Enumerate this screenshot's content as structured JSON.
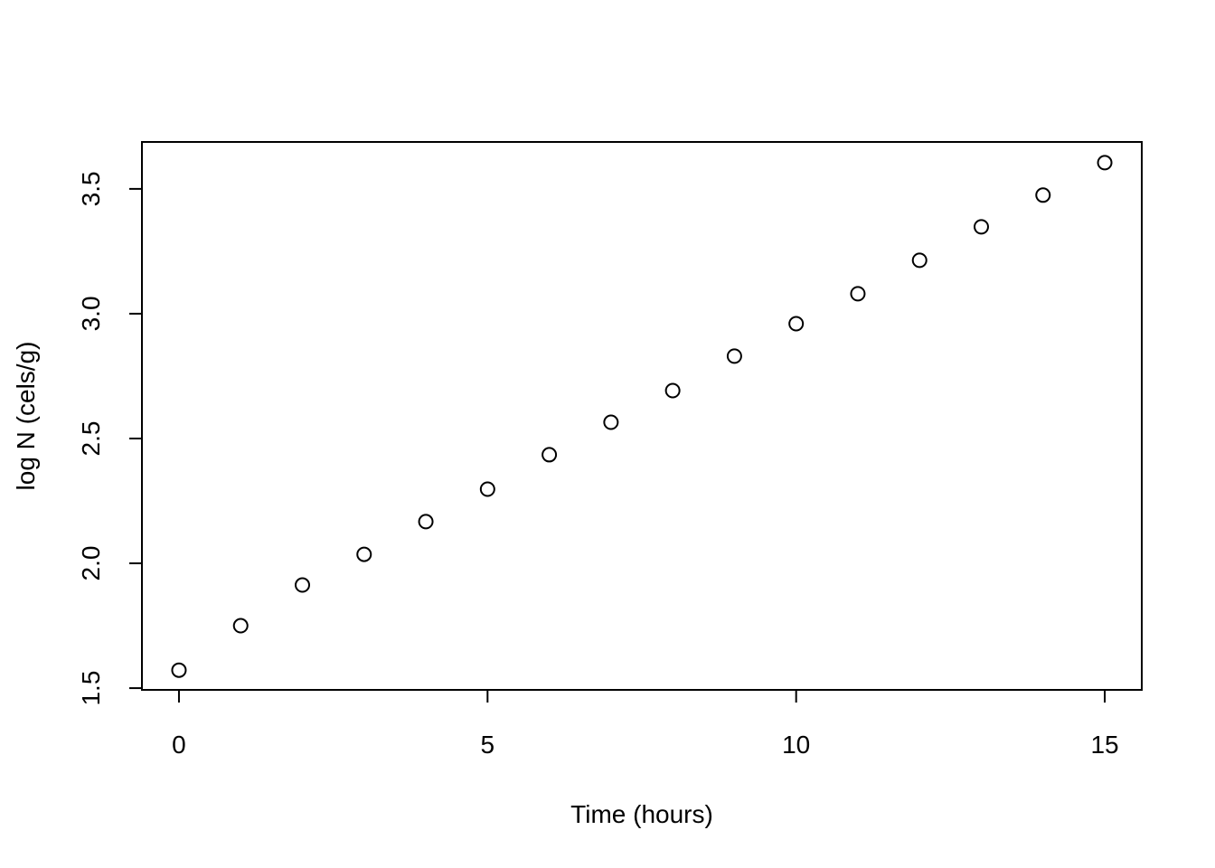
{
  "chart_data": {
    "type": "scatter",
    "x_label": "Time (hours)",
    "y_label": "log N (cels/g)",
    "x": [
      0,
      1,
      2,
      3,
      4,
      5,
      6,
      7,
      8,
      9,
      10,
      11,
      12,
      13,
      14,
      15
    ],
    "values": [
      1.572,
      1.75,
      1.913,
      2.036,
      2.167,
      2.297,
      2.435,
      2.565,
      2.692,
      2.83,
      2.96,
      3.08,
      3.214,
      3.348,
      3.475,
      3.605
    ],
    "color": "#000000",
    "xlim": [
      -0.6,
      15.6
    ],
    "ylim": [
      1.493,
      3.688
    ],
    "xticks": [
      0,
      5,
      10,
      15
    ],
    "yticks": [
      1.5,
      {
        "value": 2,
        "label": "2.0"
      },
      2.5,
      {
        "value": 3,
        "label": "3.0"
      },
      3.5
    ],
    "grid": false
  }
}
